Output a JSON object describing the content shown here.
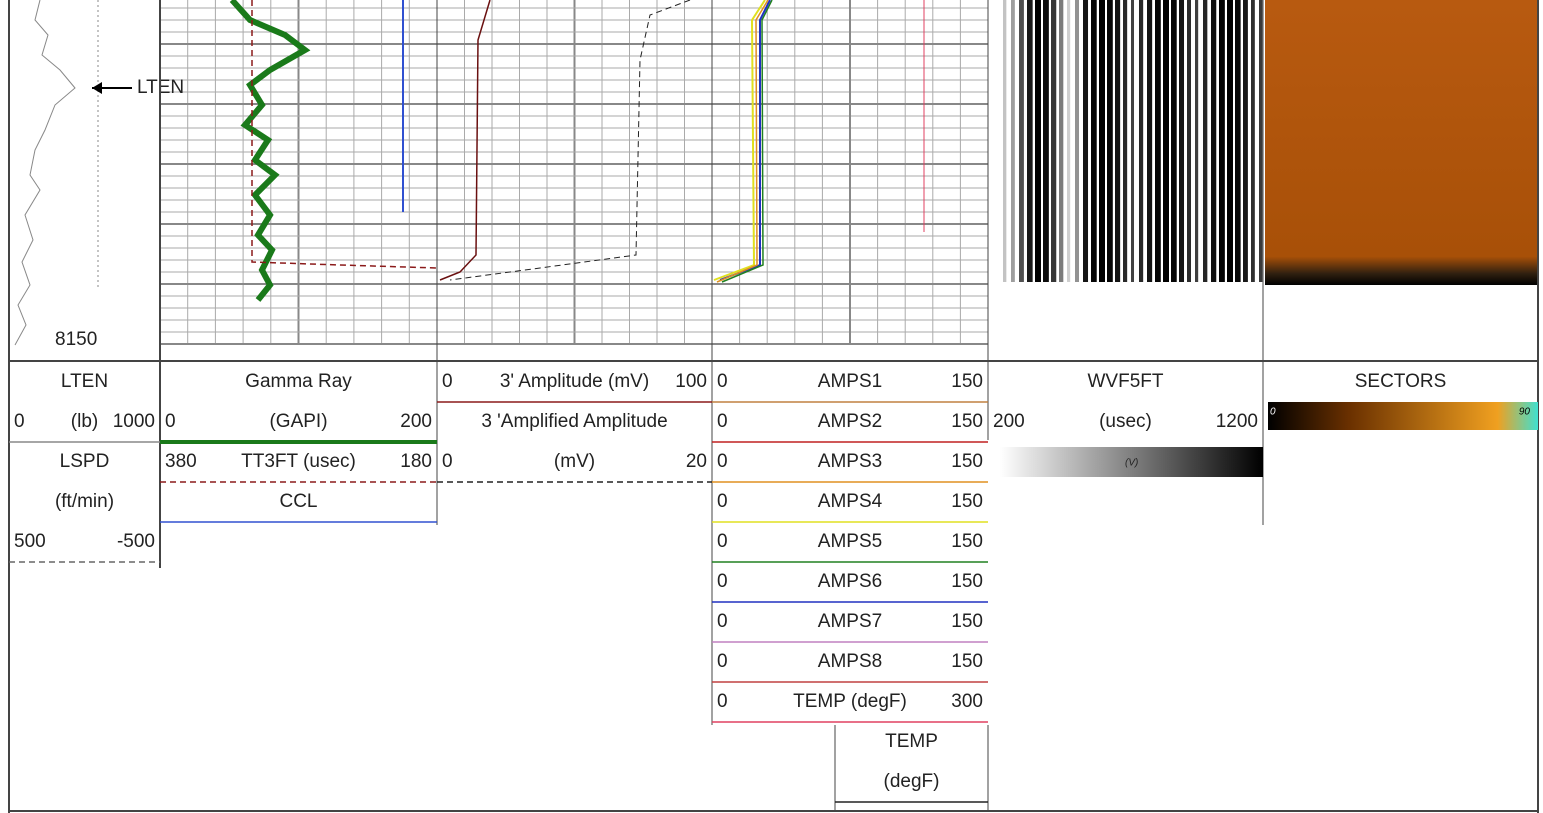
{
  "depth_label": "8150",
  "annotation": "LTEN",
  "tracks": [
    {
      "rows": [
        {
          "name": "LTEN"
        },
        {
          "left": "0",
          "name": "(lb)",
          "right": "1000",
          "line": "#888"
        },
        {
          "name": "LSPD"
        },
        {
          "name": "(ft/min)"
        },
        {
          "left": "500",
          "right": "-500",
          "line": "#666",
          "dash": true
        }
      ]
    },
    {
      "rows": [
        {
          "name": "Gamma Ray"
        },
        {
          "left": "0",
          "name": "(GAPI)",
          "right": "200",
          "line": "#1a7a1a"
        },
        {
          "left": "380",
          "name": "TT3FT (usec)",
          "right": "180",
          "line": "#8b1a1a",
          "dash": true
        },
        {
          "name": "CCL",
          "line": "#3050d0"
        }
      ]
    },
    {
      "rows": [
        {
          "left": "0",
          "name": "3' Amplitude (mV)",
          "right": "100",
          "line": "#8b1a1a"
        },
        {
          "name": "3 'Amplified Amplitude"
        },
        {
          "left": "0",
          "name": "(mV)",
          "right": "20",
          "line": "#222",
          "dash": true
        }
      ]
    },
    {
      "rows": [
        {
          "left": "0",
          "name": "AMPS1",
          "right": "150",
          "line": "#c08040"
        },
        {
          "left": "0",
          "name": "AMPS2",
          "right": "150",
          "line": "#c02020"
        },
        {
          "left": "0",
          "name": "AMPS3",
          "right": "150",
          "line": "#e09020"
        },
        {
          "left": "0",
          "name": "AMPS4",
          "right": "150",
          "line": "#e0e020"
        },
        {
          "left": "0",
          "name": "AMPS5",
          "right": "150",
          "line": "#208020"
        },
        {
          "left": "0",
          "name": "AMPS6",
          "right": "150",
          "line": "#2030c0"
        },
        {
          "left": "0",
          "name": "AMPS7",
          "right": "150",
          "line": "#c080c0"
        },
        {
          "left": "0",
          "name": "AMPS8",
          "right": "150",
          "line": "#c04040"
        },
        {
          "left": "0",
          "name": "TEMP (degF)",
          "right": "300",
          "line": "#e04060"
        },
        {
          "name": "TEMP"
        },
        {
          "name": "(degF)",
          "line": "#222"
        }
      ]
    },
    {
      "rows": [
        {
          "name": "WVF5FT"
        },
        {
          "left": "200",
          "name": "(usec)",
          "right": "1200"
        }
      ],
      "colorbar_labels": [
        "(V)"
      ]
    },
    {
      "rows": [
        {
          "name": "SECTORS"
        }
      ],
      "colorbar_labels": [
        "0",
        "90"
      ]
    }
  ]
}
